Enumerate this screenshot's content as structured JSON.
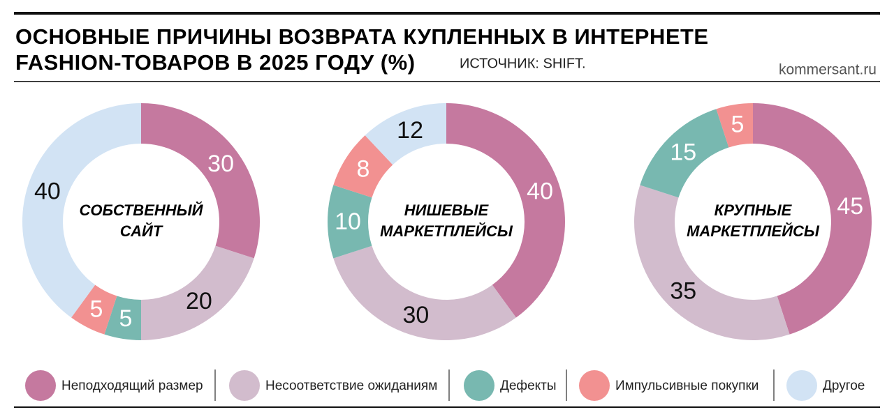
{
  "title": [
    "ОСНОВНЫЕ ПРИЧИНЫ ВОЗВРАТА КУПЛЕННЫХ В ИНТЕРНЕТЕ",
    "FASHION-ТОВАРОВ В 2025 ГОДУ (%)"
  ],
  "source": "ИСТОЧНИК: SHIFT.",
  "site": "kommersant.ru",
  "legend": [
    {
      "name": "Неподходящий размер",
      "color": "#c5799f",
      "label_color": "#ffffff"
    },
    {
      "name": "Несоответствие ожиданиям",
      "color": "#d2bccd",
      "label_color": "#111111"
    },
    {
      "name": "Дефекты",
      "color": "#78b8b0",
      "label_color": "#ffffff"
    },
    {
      "name": "Импульсивные покупки",
      "color": "#f29191",
      "label_color": "#ffffff"
    },
    {
      "name": "Другое",
      "color": "#d2e3f4",
      "label_color": "#111111"
    }
  ],
  "chart_data": [
    {
      "type": "donut",
      "center_label": [
        "СОБСТВЕННЫЙ",
        "САЙТ"
      ],
      "values": [
        30,
        20,
        5,
        5,
        40
      ]
    },
    {
      "type": "donut",
      "center_label": [
        "НИШЕВЫЕ",
        "МАРКЕТПЛЕЙСЫ"
      ],
      "values": [
        40,
        30,
        10,
        8,
        12
      ]
    },
    {
      "type": "donut",
      "center_label": [
        "КРУПНЫЕ",
        "МАРКЕТПЛЕЙСЫ"
      ],
      "values": [
        45,
        35,
        15,
        5
      ]
    }
  ]
}
